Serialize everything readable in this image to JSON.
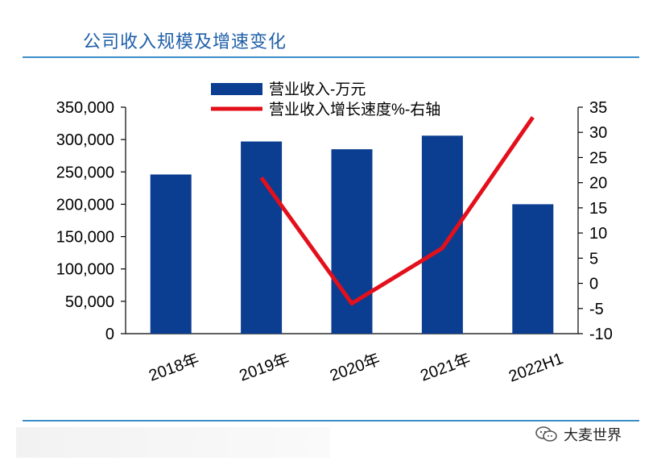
{
  "page_title": "公司收入规模及增速变化",
  "watermark": "大麦世界",
  "colors": {
    "bar": "#0b3d91",
    "line": "#e3101b",
    "title": "#1f5fa8",
    "rule": "#3a8fc8"
  },
  "chart_data": {
    "type": "bar",
    "title": "公司收入规模及增速变化",
    "categories": [
      "2018年",
      "2019年",
      "2020年",
      "2021年",
      "2022H1"
    ],
    "series": [
      {
        "name": "营业收入-万元",
        "kind": "bar",
        "axis": "left",
        "values": [
          246000,
          297000,
          285000,
          306000,
          200000
        ]
      },
      {
        "name": "营业收入增长速度%-右轴",
        "kind": "line",
        "axis": "right",
        "values": [
          null,
          21,
          -4,
          7,
          33
        ]
      }
    ],
    "y_left": {
      "min": 0,
      "max": 350000,
      "ticks": [
        "0",
        "50,000",
        "100,000",
        "150,000",
        "200,000",
        "250,000",
        "300,000",
        "350,000"
      ]
    },
    "y_right": {
      "min": -10,
      "max": 35,
      "ticks": [
        "-10",
        "-5",
        "0",
        "5",
        "10",
        "15",
        "20",
        "25",
        "30",
        "35"
      ]
    },
    "legend": [
      "营业收入-万元",
      "营业收入增长速度%-右轴"
    ],
    "legend_position": "top-center"
  }
}
